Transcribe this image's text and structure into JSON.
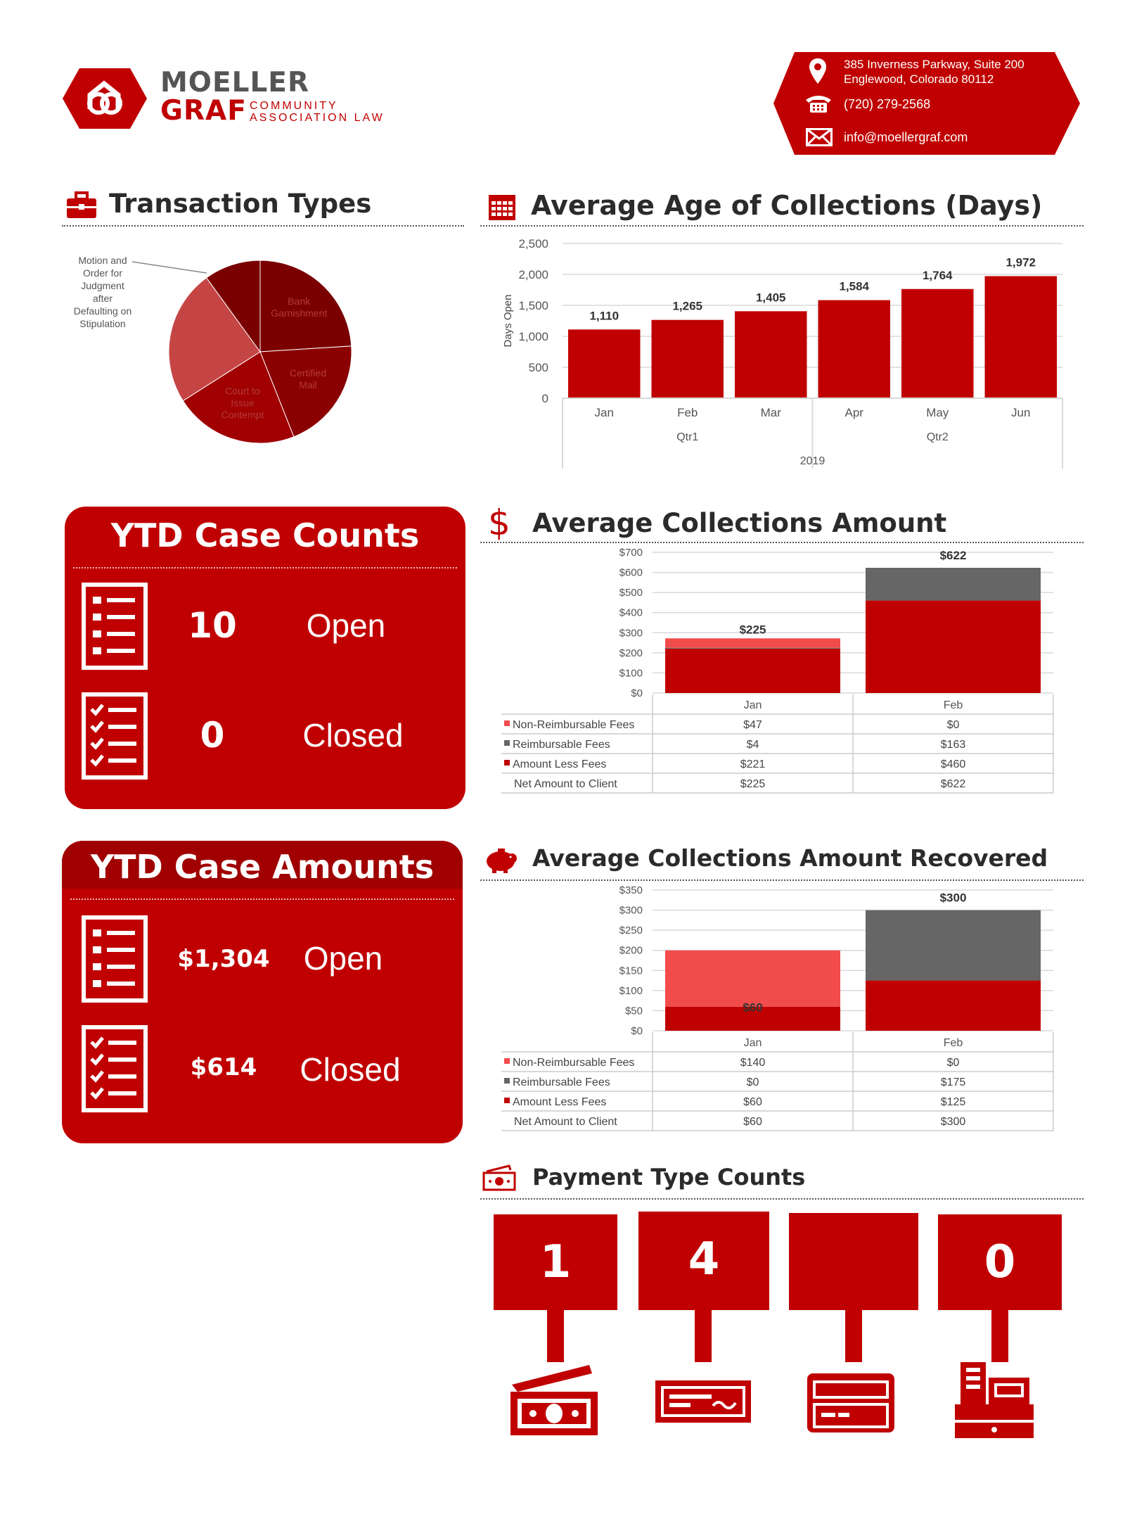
{
  "brand": {
    "line1": "MOELLER",
    "line2": "GRAF",
    "sub1": "COMMUNITY",
    "sub2": "ASSOCIATION LAW",
    "accent": "#c00000",
    "dark_red": "#8b0000",
    "light_red": "#f24b4b",
    "gray": "#666666"
  },
  "contact": {
    "address1": "385 Inverness Parkway, Suite 200",
    "address2": "Englewood, Colorado 80112",
    "phone": "(720) 279-2568",
    "email": "info@moellergraf.com",
    "icons": [
      "location-pin-icon",
      "phone-icon",
      "envelope-icon"
    ]
  },
  "sections": {
    "transaction_types": {
      "title": "Transaction Types",
      "icon": "briefcase-icon"
    },
    "avg_age": {
      "title": "Average Age of Collections (Days)",
      "icon": "calendar-icon"
    },
    "avg_amount": {
      "title": "Average Collections Amount",
      "icon": "dollar-icon"
    },
    "avg_recovered": {
      "title": "Average Collections Amount Recovered",
      "icon": "piggy-bank-icon"
    },
    "payment_types": {
      "title": "Payment Type Counts",
      "icon": "cash-icon"
    }
  },
  "ytd_counts": {
    "title": "YTD Case Counts",
    "open_value": "10",
    "open_label": "Open",
    "closed_value": "0",
    "closed_label": "Closed"
  },
  "ytd_amounts": {
    "title": "YTD Case Amounts",
    "open_value": "$1,304",
    "open_label": "Open",
    "closed_value": "$614",
    "closed_label": "Closed"
  },
  "payment_counts": {
    "values": [
      "1",
      "4",
      "",
      "0"
    ],
    "icons": [
      "cash-bills-icon",
      "check-icon",
      "credit-card-icon",
      "cash-register-icon"
    ]
  },
  "chart_data": [
    {
      "type": "pie",
      "title": "Transaction Types",
      "slices": [
        {
          "label": "Bank Garnishment",
          "value": 24,
          "color": "#7a0000"
        },
        {
          "label": "Certified Mail",
          "value": 20,
          "color": "#8b0000"
        },
        {
          "label": "Court to Issue Contempt",
          "value": 22,
          "color": "#a00000"
        },
        {
          "label": "Motion and Order for Judgment after Defaulting on Stipulation",
          "value": 24,
          "color": "#c54545"
        },
        {
          "label": "",
          "value": 10,
          "color": "#7a0000"
        }
      ],
      "callout_lines": [
        "Motion and",
        "Order for",
        "Judgment",
        "after",
        "Defaulting on",
        "Stipulation"
      ]
    },
    {
      "type": "bar",
      "title": "Average Age of Collections (Days)",
      "ylabel": "Days Open",
      "categories": [
        "Jan",
        "Feb",
        "Mar",
        "Apr",
        "May",
        "Jun"
      ],
      "quarters": [
        "Qtr1",
        "Qtr2"
      ],
      "year": "2019",
      "values": [
        1110,
        1265,
        1405,
        1584,
        1764,
        1972
      ],
      "value_labels": [
        "1,110",
        "1,265",
        "1,405",
        "1,584",
        "1,764",
        "1,972"
      ],
      "ylim": [
        0,
        2500
      ],
      "yticks": [
        "0",
        "500",
        "1,000",
        "1,500",
        "2,000",
        "2,500"
      ],
      "grid": true,
      "color": "#c00000"
    },
    {
      "type": "bar",
      "stacked": true,
      "title": "Average Collections Amount",
      "categories": [
        "Jan",
        "Feb"
      ],
      "ylim": [
        0,
        700
      ],
      "yticks": [
        "$0",
        "$100",
        "$200",
        "$300",
        "$400",
        "$500",
        "$600",
        "$700"
      ],
      "series": [
        {
          "name": "Amount Less Fees",
          "values": [
            221,
            460
          ],
          "display": [
            "$221",
            "$460"
          ],
          "color": "#c00000"
        },
        {
          "name": "Reimbursable Fees",
          "values": [
            4,
            163
          ],
          "display": [
            "$4",
            "$163"
          ],
          "color": "#666666"
        },
        {
          "name": "Non-Reimbursable Fees",
          "values": [
            47,
            0
          ],
          "display": [
            "$47",
            "$0"
          ],
          "color": "#f24b4b"
        }
      ],
      "net": {
        "name": "Net Amount to Client",
        "values": [
          225,
          622
        ],
        "display": [
          "$225",
          "$622"
        ]
      },
      "table_rows": [
        "Non-Reimbursable Fees",
        "Reimbursable Fees",
        "Amount Less Fees",
        "Net Amount to Client"
      ]
    },
    {
      "type": "bar",
      "stacked": true,
      "title": "Average Collections Amount Recovered",
      "categories": [
        "Jan",
        "Feb"
      ],
      "ylim": [
        0,
        350
      ],
      "yticks": [
        "$0",
        "$50",
        "$100",
        "$150",
        "$200",
        "$250",
        "$300",
        "$350"
      ],
      "series": [
        {
          "name": "Amount Less Fees",
          "values": [
            60,
            125
          ],
          "display": [
            "$60",
            "$125"
          ],
          "color": "#c00000"
        },
        {
          "name": "Reimbursable Fees",
          "values": [
            0,
            175
          ],
          "display": [
            "$0",
            "$175"
          ],
          "color": "#666666"
        },
        {
          "name": "Non-Reimbursable Fees",
          "values": [
            140,
            0
          ],
          "display": [
            "$140",
            "$0"
          ],
          "color": "#f24b4b"
        }
      ],
      "net": {
        "name": "Net Amount to Client",
        "values": [
          60,
          300
        ],
        "display": [
          "$60",
          "$300"
        ]
      },
      "table_rows": [
        "Non-Reimbursable Fees",
        "Reimbursable Fees",
        "Amount Less Fees",
        "Net Amount to Client"
      ]
    }
  ]
}
